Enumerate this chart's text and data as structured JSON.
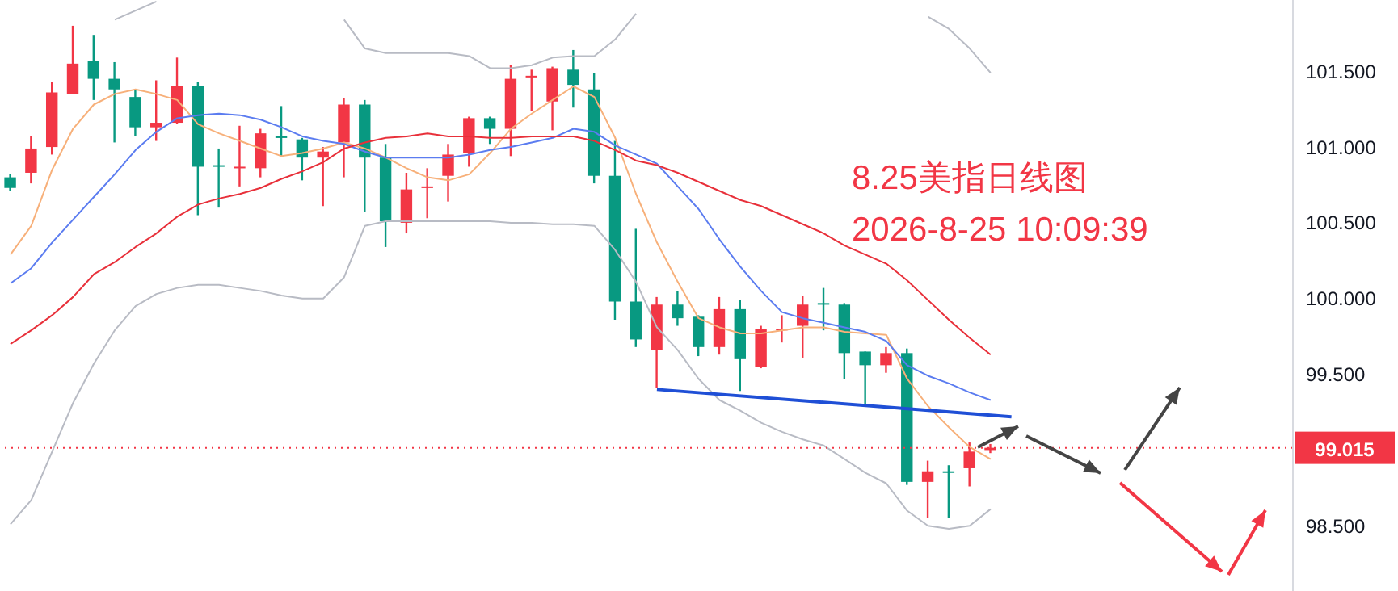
{
  "chart_data": {
    "type": "candlestick",
    "title": "8.25美指日线图",
    "subtitle": "2026-8-25 10:09:39",
    "categories": [
      null,
      null,
      null,
      null,
      null,
      null,
      null,
      null,
      null,
      null,
      null,
      null,
      null,
      null,
      null,
      null,
      null,
      null,
      null,
      null,
      null,
      null,
      null,
      null,
      null,
      null,
      null,
      null,
      null,
      null,
      null,
      null,
      null,
      null,
      null,
      null,
      null,
      null,
      null,
      null,
      null,
      null,
      null,
      null,
      null,
      null,
      null,
      null,
      null,
      null,
      null,
      null,
      null,
      null,
      null,
      null,
      null,
      null,
      null,
      null,
      null,
      null
    ],
    "ohlc": [
      [
        100.8,
        100.82,
        100.71,
        100.73
      ],
      [
        100.83,
        101.07,
        100.76,
        100.99
      ],
      [
        101.0,
        101.43,
        100.95,
        101.36
      ],
      [
        101.35,
        101.8,
        101.35,
        101.55
      ],
      [
        101.57,
        101.74,
        101.31,
        101.45
      ],
      [
        101.45,
        101.56,
        101.03,
        101.38
      ],
      [
        101.33,
        101.38,
        101.07,
        101.13
      ],
      [
        101.13,
        101.44,
        101.04,
        101.16
      ],
      [
        101.16,
        101.59,
        101.15,
        101.4
      ],
      [
        101.4,
        101.43,
        100.55,
        100.87
      ],
      [
        100.88,
        100.99,
        100.6,
        100.87
      ],
      [
        100.86,
        101.14,
        100.74,
        100.87
      ],
      [
        100.86,
        101.12,
        100.8,
        101.09
      ],
      [
        101.07,
        101.27,
        100.94,
        101.06
      ],
      [
        101.05,
        101.06,
        100.78,
        100.93
      ],
      [
        100.93,
        101.0,
        100.61,
        100.97
      ],
      [
        101.03,
        101.32,
        100.8,
        101.28
      ],
      [
        101.28,
        101.31,
        100.57,
        100.93
      ],
      [
        100.93,
        101.02,
        100.34,
        100.51
      ],
      [
        100.5,
        100.83,
        100.43,
        100.72
      ],
      [
        100.73,
        100.86,
        100.53,
        100.74
      ],
      [
        100.81,
        101.02,
        100.64,
        100.95
      ],
      [
        100.96,
        101.2,
        100.87,
        101.19
      ],
      [
        101.19,
        101.2,
        101.02,
        101.12
      ],
      [
        101.12,
        101.54,
        100.94,
        101.45
      ],
      [
        101.46,
        101.51,
        101.24,
        101.47
      ],
      [
        101.3,
        101.53,
        101.11,
        101.52
      ],
      [
        101.51,
        101.64,
        101.26,
        101.41
      ],
      [
        101.38,
        101.49,
        100.76,
        100.81
      ],
      [
        100.81,
        101.04,
        99.86,
        99.98
      ],
      [
        99.98,
        100.46,
        99.68,
        99.73
      ],
      [
        99.66,
        100.01,
        99.41,
        99.96
      ],
      [
        99.96,
        100.05,
        99.82,
        99.87
      ],
      [
        99.88,
        99.89,
        99.62,
        99.68
      ],
      [
        99.68,
        100.01,
        99.63,
        99.93
      ],
      [
        99.93,
        99.99,
        99.39,
        99.6
      ],
      [
        99.55,
        99.82,
        99.54,
        99.8
      ],
      [
        99.79,
        99.89,
        99.71,
        99.8
      ],
      [
        99.82,
        100.02,
        99.61,
        99.96
      ],
      [
        99.97,
        100.07,
        99.79,
        99.96
      ],
      [
        99.96,
        99.97,
        99.47,
        99.64
      ],
      [
        99.65,
        99.65,
        99.3,
        99.56
      ],
      [
        99.56,
        99.68,
        99.51,
        99.64
      ],
      [
        99.64,
        99.67,
        98.77,
        98.79
      ],
      [
        98.79,
        98.93,
        98.55,
        98.86
      ],
      [
        98.86,
        98.9,
        98.55,
        98.85
      ],
      [
        98.88,
        99.05,
        98.76,
        98.99
      ],
      [
        99.0,
        99.04,
        98.98,
        99.015
      ],
      null,
      null,
      null,
      null,
      null,
      null,
      null,
      null,
      null,
      null,
      null,
      null,
      null,
      null
    ],
    "colors": [
      "#089981",
      "#f23645",
      "#f23645",
      "#f23645",
      "#089981",
      "#089981",
      "#089981",
      "#f23645",
      "#f23645",
      "#089981",
      "#089981",
      "#f23645",
      "#f23645",
      "#089981",
      "#089981",
      "#f23645",
      "#f23645",
      "#089981",
      "#089981",
      "#f23645",
      "#f23645",
      "#f23645",
      "#f23645",
      "#089981",
      "#f23645",
      "#f23645",
      "#f23645",
      "#089981",
      "#089981",
      "#089981",
      "#089981",
      "#f23645",
      "#089981",
      "#089981",
      "#f23645",
      "#089981",
      "#f23645",
      "#f23645",
      "#f23645",
      "#089981",
      "#089981",
      "#089981",
      "#f23645",
      "#089981",
      "#f23645",
      "#089981",
      "#f23645",
      "#f23645",
      null,
      null,
      null,
      null,
      null,
      null,
      null,
      null,
      null,
      null,
      null,
      null,
      null,
      null
    ],
    "series": [
      {
        "type": "line",
        "color": "#f7b07a",
        "values": [
          100.29,
          100.48,
          100.85,
          101.12,
          101.28,
          101.35,
          101.38,
          101.35,
          101.31,
          101.15,
          101.09,
          101.04,
          100.99,
          100.94,
          100.96,
          100.99,
          101.03,
          100.99,
          100.93,
          100.86,
          100.8,
          100.78,
          100.82,
          100.96,
          101.12,
          101.22,
          101.31,
          101.4,
          101.33,
          101.06,
          100.69,
          100.37,
          100.11,
          99.87,
          99.81,
          99.77,
          99.77,
          99.79,
          99.81,
          99.81,
          99.78,
          99.77,
          99.76,
          99.47,
          99.29,
          99.15,
          99.02,
          98.94,
          null,
          null,
          null,
          null,
          null,
          null,
          null,
          null,
          null,
          null,
          null,
          null,
          null,
          null
        ]
      },
      {
        "type": "line",
        "color": "#5b7cf0",
        "values": [
          100.1,
          100.2,
          100.37,
          100.52,
          100.67,
          100.82,
          100.98,
          101.1,
          101.19,
          101.21,
          101.22,
          101.21,
          101.18,
          101.13,
          101.07,
          101.04,
          101.02,
          100.97,
          100.93,
          100.93,
          100.93,
          100.93,
          100.95,
          100.98,
          101.0,
          101.03,
          101.06,
          101.12,
          101.1,
          101.01,
          100.95,
          100.89,
          100.74,
          100.59,
          100.39,
          100.21,
          100.05,
          99.91,
          99.87,
          99.84,
          99.81,
          99.78,
          99.72,
          99.56,
          99.49,
          99.44,
          99.38,
          99.33,
          null,
          null,
          null,
          null,
          null,
          null,
          null,
          null,
          null,
          null,
          null,
          null,
          null,
          null
        ]
      },
      {
        "type": "line",
        "color": "#e8303a",
        "values": [
          99.7,
          99.79,
          99.89,
          100.01,
          100.16,
          100.24,
          100.34,
          100.43,
          100.54,
          100.62,
          100.66,
          100.69,
          100.73,
          100.79,
          100.84,
          100.9,
          100.99,
          101.03,
          101.06,
          101.07,
          101.09,
          101.07,
          101.07,
          101.06,
          101.06,
          101.07,
          101.07,
          101.07,
          101.04,
          100.98,
          100.91,
          100.88,
          100.83,
          100.77,
          100.71,
          100.65,
          100.61,
          100.55,
          100.49,
          100.43,
          100.35,
          100.29,
          100.23,
          100.12,
          99.99,
          99.86,
          99.74,
          99.63,
          null,
          null,
          null,
          null,
          null,
          null,
          null,
          null,
          null,
          null,
          null,
          null,
          null,
          null
        ]
      },
      {
        "type": "line",
        "color": "#b8bbc4",
        "values": [
          null,
          null,
          null,
          null,
          null,
          101.84,
          101.9,
          101.96,
          null,
          null,
          null,
          null,
          null,
          null,
          null,
          null,
          101.84,
          101.65,
          101.62,
          101.62,
          101.62,
          101.62,
          101.6,
          101.52,
          101.52,
          101.54,
          101.59,
          101.6,
          101.6,
          101.71,
          101.88,
          null,
          null,
          null,
          null,
          null,
          null,
          null,
          null,
          null,
          null,
          null,
          null,
          null,
          101.86,
          101.78,
          101.65,
          101.49,
          null,
          null,
          null,
          null,
          null,
          null,
          null,
          null,
          null,
          null,
          null,
          null,
          null,
          null
        ]
      },
      {
        "type": "line",
        "color": "#b8bbc4",
        "values": [
          98.51,
          98.67,
          98.99,
          99.31,
          99.57,
          99.79,
          99.95,
          100.03,
          100.07,
          100.09,
          100.09,
          100.07,
          100.05,
          100.02,
          100.0,
          100.0,
          100.14,
          100.48,
          100.51,
          100.51,
          100.51,
          100.51,
          100.51,
          100.51,
          100.5,
          100.5,
          100.49,
          100.49,
          100.48,
          100.32,
          100.11,
          99.81,
          99.66,
          99.47,
          99.33,
          99.26,
          99.18,
          99.12,
          99.07,
          99.03,
          98.94,
          98.85,
          98.78,
          98.6,
          98.5,
          98.48,
          98.5,
          98.61,
          null,
          null,
          null,
          null,
          null,
          null,
          null,
          null,
          null,
          null,
          null,
          null,
          null,
          null
        ]
      },
      {
        "type": "line",
        "color": "#1f4fd6",
        "values": [
          null,
          null,
          null,
          null,
          null,
          null,
          null,
          null,
          null,
          null,
          null,
          null,
          null,
          null,
          null,
          null,
          null,
          null,
          null,
          null,
          null,
          null,
          null,
          null,
          null,
          null,
          null,
          null,
          null,
          null,
          null,
          99.4,
          null,
          null,
          null,
          null,
          null,
          null,
          null,
          null,
          null,
          null,
          null,
          null,
          null,
          null,
          null,
          null,
          99.22,
          null,
          null,
          null,
          null,
          null,
          null,
          null,
          null,
          null,
          null,
          null,
          null,
          null
        ]
      }
    ],
    "ylim": [
      98.07,
      101.97
    ],
    "yticks": [
      {
        "value": 98.5,
        "label": "98.500"
      },
      {
        "value": 99.5,
        "label": "99.500"
      },
      {
        "value": 100,
        "label": "100.000"
      },
      {
        "value": 100.5,
        "label": "100.500"
      },
      {
        "value": 101,
        "label": "101.000"
      },
      {
        "value": 101.5,
        "label": "101.500"
      }
    ],
    "tick_labels": "y",
    "ref_lines": [
      {
        "axis": "y",
        "value": 99.015,
        "label": "99.015",
        "color": "#f23645",
        "line_style": "dotted"
      }
    ]
  }
}
